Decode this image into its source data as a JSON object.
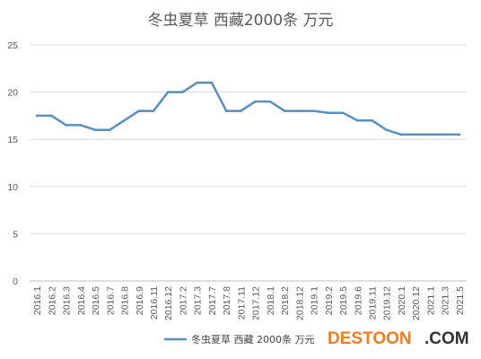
{
  "chart_data": {
    "type": "line",
    "title": "冬虫夏草 西藏2000条 万元",
    "xlabel": "",
    "ylabel": "",
    "ylim": [
      0,
      25
    ],
    "yticks": [
      0,
      5,
      10,
      15,
      20,
      25
    ],
    "grid": true,
    "legend_position": "bottom",
    "categories": [
      "2016.1",
      "2016.2",
      "2016.3",
      "2016.4",
      "2016.5",
      "2016.7",
      "2016.8",
      "2016.9",
      "2016.11",
      "2016.12",
      "2017.2",
      "2017.3",
      "2017.7",
      "2017.8",
      "2017.11",
      "2017.12",
      "2018.1",
      "2018.2",
      "2018.12",
      "2019.1",
      "2019.2",
      "2019.5",
      "2019.6",
      "2019.11",
      "2019.12",
      "2020.1",
      "2020.12",
      "2021.1",
      "2021.3",
      "2021.5"
    ],
    "series": [
      {
        "name": "冬虫夏草 西藏 2000条 万元",
        "color": "#5b8fbf",
        "values": [
          17.5,
          17.5,
          16.5,
          16.5,
          16,
          16,
          17,
          18,
          18,
          20,
          20,
          21,
          21,
          18,
          18,
          19,
          19,
          18,
          18,
          18,
          17.8,
          17.8,
          17,
          17,
          16,
          15.5,
          15.5,
          15.5,
          15.5,
          15.5
        ]
      }
    ]
  },
  "watermark": {
    "text_main": "DESTOON",
    "text_com": ".COM"
  }
}
